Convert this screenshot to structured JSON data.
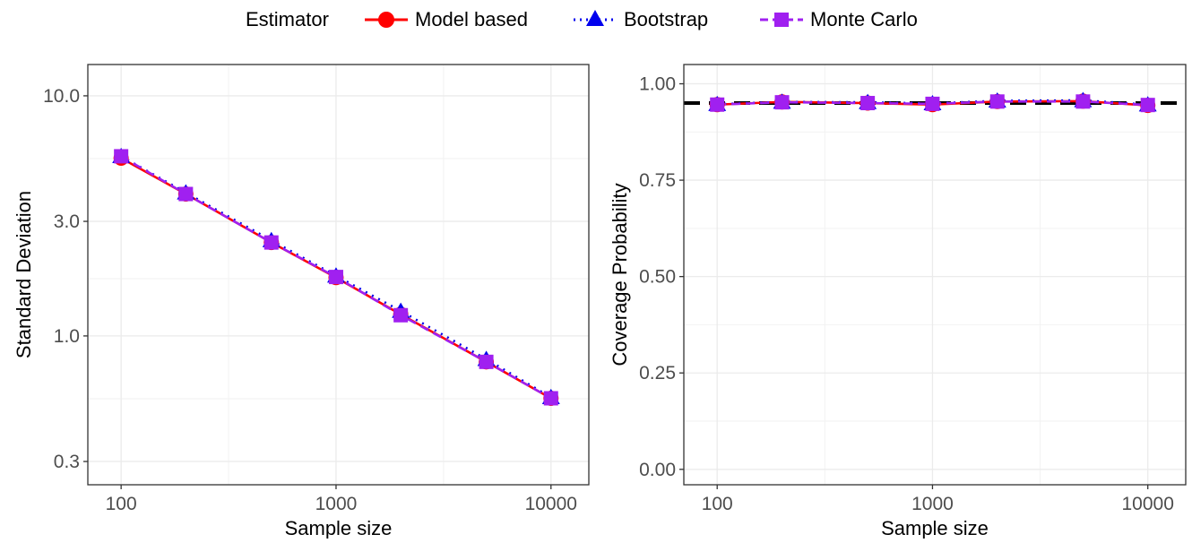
{
  "legend": {
    "title": "Estimator",
    "items": [
      {
        "label": "Model based",
        "color": "#ff0000",
        "marker": "circle",
        "line": "solid"
      },
      {
        "label": "Bootstrap",
        "color": "#0000ee",
        "marker": "triangle",
        "line": "dotted"
      },
      {
        "label": "Monte Carlo",
        "color": "#a020f0",
        "marker": "square",
        "line": "dashed"
      }
    ],
    "placement": "top"
  },
  "chart_data": [
    {
      "type": "line",
      "xlabel": "Sample size",
      "ylabel": "Standard Deviation",
      "x_scale": "log10",
      "y_scale": "log10",
      "x": [
        100,
        200,
        500,
        1000,
        2000,
        5000,
        10000
      ],
      "x_ticks": [
        "100",
        "1000",
        "10000"
      ],
      "y_ticks": [
        "0.3",
        "1.0",
        "3.0",
        "10.0"
      ],
      "xlim": [
        70,
        15000
      ],
      "ylim": [
        0.24,
        13.5
      ],
      "grid": true,
      "series": [
        {
          "name": "Model based",
          "values": [
            5.5,
            3.9,
            2.45,
            1.75,
            1.23,
            0.78,
            0.55
          ]
        },
        {
          "name": "Bootstrap",
          "values": [
            5.6,
            3.95,
            2.5,
            1.78,
            1.27,
            0.8,
            0.555
          ]
        },
        {
          "name": "Monte Carlo",
          "values": [
            5.6,
            3.9,
            2.45,
            1.76,
            1.22,
            0.78,
            0.55
          ]
        }
      ]
    },
    {
      "type": "line",
      "xlabel": "Sample size",
      "ylabel": "Coverage Probability",
      "x_scale": "log10",
      "y_scale": "linear",
      "x": [
        100,
        200,
        500,
        1000,
        2000,
        5000,
        10000
      ],
      "x_ticks": [
        "100",
        "1000",
        "10000"
      ],
      "y_ticks": [
        "0.00",
        "0.25",
        "0.50",
        "0.75",
        "1.00"
      ],
      "xlim": [
        70,
        15000
      ],
      "ylim": [
        -0.04,
        1.05
      ],
      "grid": true,
      "reference_line": {
        "y": 0.95,
        "color": "#000000",
        "style": "dashed"
      },
      "series": [
        {
          "name": "Model based",
          "values": [
            0.946,
            0.953,
            0.95,
            0.946,
            0.954,
            0.955,
            0.944
          ]
        },
        {
          "name": "Bootstrap",
          "values": [
            0.947,
            0.953,
            0.952,
            0.949,
            0.956,
            0.957,
            0.946
          ]
        },
        {
          "name": "Monte Carlo",
          "values": [
            0.946,
            0.952,
            0.95,
            0.948,
            0.954,
            0.954,
            0.945
          ]
        }
      ]
    }
  ]
}
